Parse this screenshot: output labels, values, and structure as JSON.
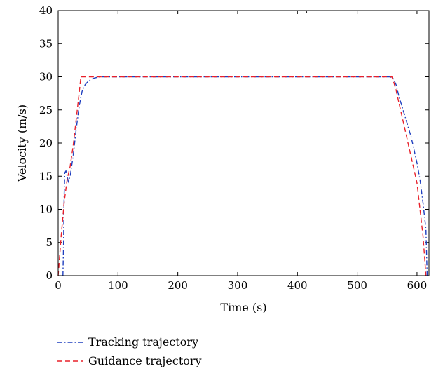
{
  "chart_data": {
    "type": "line",
    "title": "",
    "xlabel": "Time (s)",
    "ylabel": "Velocity (m/s)",
    "xlim": [
      0,
      620
    ],
    "ylim": [
      0,
      40
    ],
    "xticks": [
      0,
      100,
      200,
      300,
      400,
      500,
      600
    ],
    "yticks": [
      0,
      5,
      10,
      15,
      20,
      25,
      30,
      35,
      40
    ],
    "grid": false,
    "legend_position": "bottom-left, below plot",
    "series": [
      {
        "name": "Tracking trajectory",
        "color": "#1f3fbf",
        "dash": "dash-dot",
        "x": [
          8,
          9,
          10,
          11,
          13,
          15,
          17,
          20,
          25,
          30,
          35,
          40,
          45,
          50,
          55,
          60,
          65,
          70,
          80,
          100,
          200,
          300,
          400,
          500,
          555,
          560,
          565,
          570,
          575,
          580,
          585,
          590,
          595,
          600,
          605,
          610,
          615,
          617
        ],
        "y": [
          0,
          5,
          12,
          15.5,
          15.8,
          15,
          14.2,
          15,
          18,
          22,
          25.5,
          27.8,
          28.8,
          29.3,
          29.6,
          29.8,
          29.9,
          30,
          30,
          30,
          30,
          30,
          30,
          30,
          30,
          29.8,
          28.8,
          27,
          25.5,
          24,
          22.5,
          21,
          19,
          17,
          14.5,
          11,
          7,
          0
        ]
      },
      {
        "name": "Guidance trajectory",
        "color": "#e8202a",
        "dash": "dashed",
        "x": [
          0,
          5,
          10,
          15,
          20,
          25,
          30,
          35,
          38,
          40,
          50,
          100,
          200,
          300,
          400,
          500,
          558,
          560,
          565,
          570,
          575,
          580,
          585,
          590,
          595,
          600,
          605,
          610,
          615
        ],
        "y": [
          0,
          6,
          11,
          14.5,
          16.5,
          19.5,
          23.5,
          27.5,
          30,
          30,
          30,
          30,
          30,
          30,
          30,
          30,
          30,
          29.5,
          28,
          26,
          24,
          22,
          20,
          18,
          16,
          14,
          10,
          6,
          0
        ]
      }
    ],
    "annotations": [
      {
        "text": ".",
        "x": 415,
        "y": 39.7
      }
    ]
  }
}
